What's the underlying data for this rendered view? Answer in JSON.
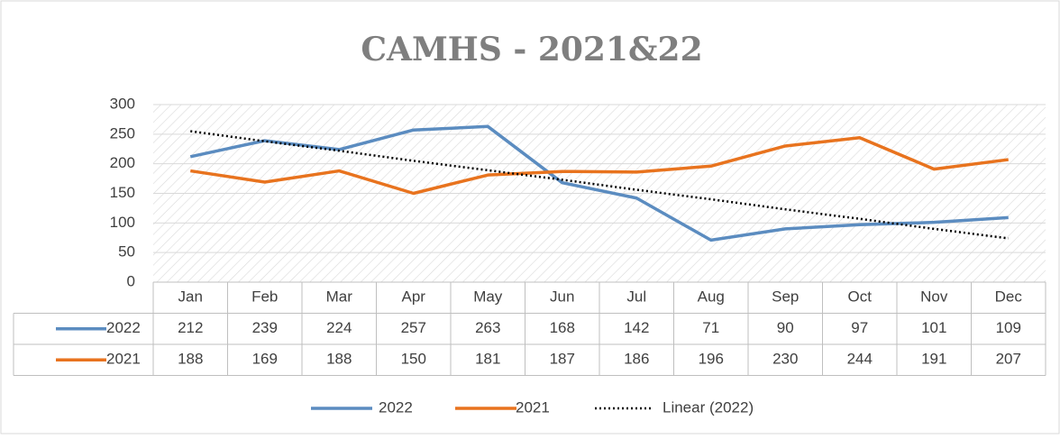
{
  "chart_data": {
    "type": "line",
    "title": "CAMHS - 2021&22",
    "categories": [
      "Jan",
      "Feb",
      "Mar",
      "Apr",
      "May",
      "Jun",
      "Jul",
      "Aug",
      "Sep",
      "Oct",
      "Nov",
      "Dec"
    ],
    "series": [
      {
        "name": "2022",
        "color": "#5b8cc0",
        "values": [
          212,
          239,
          224,
          257,
          263,
          168,
          142,
          71,
          90,
          97,
          101,
          109
        ]
      },
      {
        "name": "2021",
        "color": "#e8731e",
        "values": [
          188,
          169,
          188,
          150,
          181,
          187,
          186,
          196,
          230,
          244,
          191,
          207
        ]
      },
      {
        "name": "Linear (2022)",
        "color": "#000000",
        "dashed": true,
        "values": [
          255,
          238,
          222,
          205,
          189,
          173,
          156,
          140,
          123,
          107,
          90,
          74
        ]
      }
    ],
    "data_table": true,
    "ylim": [
      0,
      300
    ],
    "yticks": [
      0,
      50,
      100,
      150,
      200,
      250,
      300
    ],
    "grid": true,
    "legend": "bottom"
  }
}
